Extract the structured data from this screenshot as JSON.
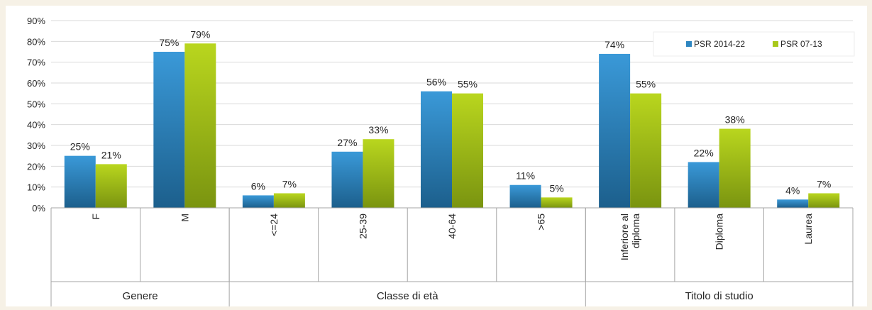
{
  "chart_data": {
    "type": "bar",
    "title": "",
    "xlabel": "",
    "ylabel": "",
    "ylim": [
      0,
      90
    ],
    "y_ticks": [
      "0%",
      "10%",
      "20%",
      "30%",
      "40%",
      "50%",
      "60%",
      "70%",
      "80%",
      "90%"
    ],
    "grid": true,
    "legend_position": "top-right",
    "groups": [
      {
        "name": "Genere",
        "categories": [
          "F",
          "M"
        ]
      },
      {
        "name": "Classe di età",
        "categories": [
          "<=24",
          "25-39",
          "40-64",
          ">65"
        ]
      },
      {
        "name": "Titolo di studio",
        "categories": [
          "Inferiore al diploma",
          "Diploma",
          "Laurea"
        ]
      }
    ],
    "categories": [
      "F",
      "M",
      "<=24",
      "25-39",
      "40-64",
      ">65",
      "Inferiore al diploma",
      "Diploma",
      "Laurea"
    ],
    "series": [
      {
        "name": "PSR  2014-22",
        "color": "#2e86c1",
        "values": [
          25,
          75,
          6,
          27,
          56,
          11,
          74,
          22,
          4
        ],
        "labels": [
          "25%",
          "75%",
          "6%",
          "27%",
          "56%",
          "11%",
          "74%",
          "22%",
          "4%"
        ]
      },
      {
        "name": "PSR  07-13",
        "color": "#a8c81a",
        "values": [
          21,
          79,
          7,
          33,
          55,
          5,
          55,
          38,
          7
        ],
        "labels": [
          "21%",
          "79%",
          "7%",
          "33%",
          "55%",
          "5%",
          "55%",
          "38%",
          "7%"
        ]
      }
    ]
  }
}
